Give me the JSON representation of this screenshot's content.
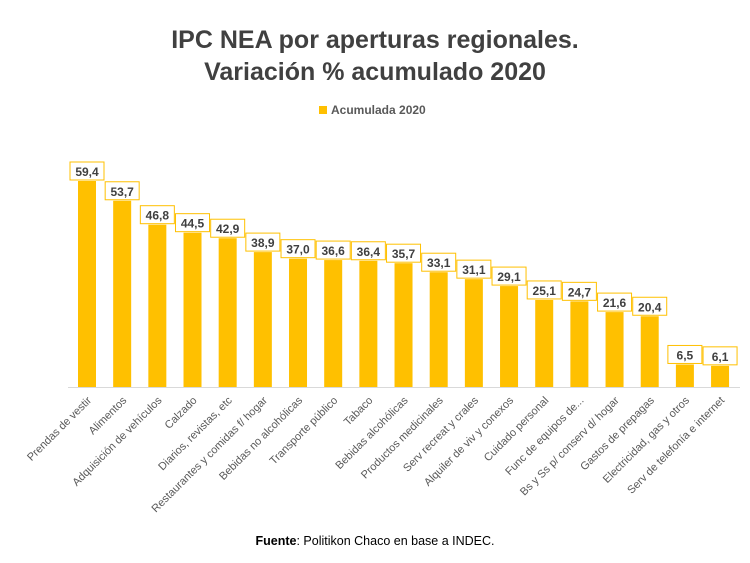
{
  "chart_data": {
    "type": "bar",
    "title": "IPC NEA por aperturas regionales.",
    "subtitle": "Variación % acumulado 2020",
    "categories": [
      "Prendas de vestir",
      "Alimentos",
      "Adquisición de vehículos",
      "Calzado",
      "Diarios, revistas, etc",
      "Restaurantes y comidas f/ hogar",
      "Bebidas no alcohólicas",
      "Transporte público",
      "Tabaco",
      "Bebidas alcohólicas",
      "Productos medicinales",
      "Serv recreat y crales",
      "Alquiler de viv y conexos",
      "Cuidado personal",
      "Func de equipos de...",
      "Bs y Ss p/ conserv d/ hogar",
      "Gastos de prepagas",
      "Electricidad, gas y otros",
      "Serv  de telefonía e internet"
    ],
    "series": [
      {
        "name": "Acumulada 2020",
        "color": "#FFC000",
        "values": [
          59.4,
          53.7,
          46.8,
          44.5,
          42.9,
          38.9,
          37.0,
          36.6,
          36.4,
          35.7,
          33.1,
          31.1,
          29.1,
          25.1,
          24.7,
          21.6,
          20.4,
          6.5,
          6.1
        ]
      }
    ],
    "data_labels": [
      "59,4",
      "53,7",
      "46,8",
      "44,5",
      "42,9",
      "38,9",
      "37,0",
      "36,6",
      "36,4",
      "35,7",
      "33,1",
      "31,1",
      "29,1",
      "25,1",
      "24,7",
      "21,6",
      "20,4",
      "6,5",
      "6,1"
    ],
    "ylim": [
      0,
      60
    ],
    "grid": false,
    "legend_position": "top",
    "xlabel": "",
    "ylabel": ""
  },
  "source": {
    "label": "Fuente",
    "text": ": Politikon Chaco  en base a INDEC."
  }
}
